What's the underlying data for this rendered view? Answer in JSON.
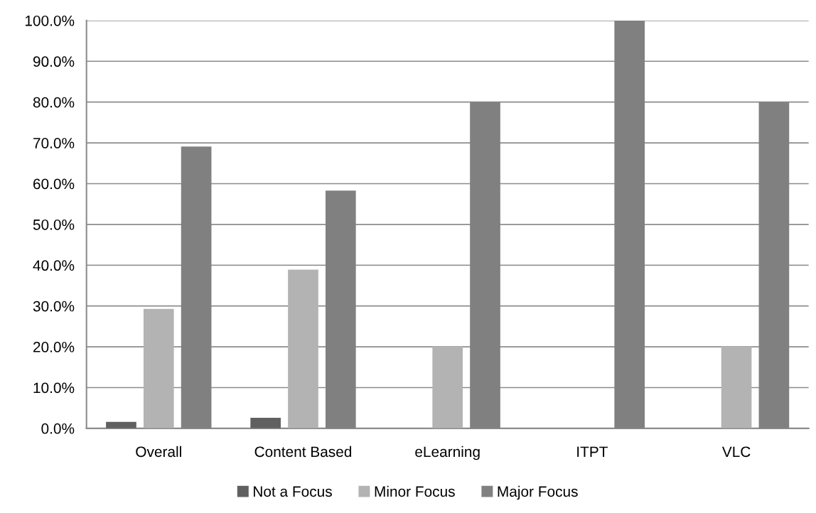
{
  "chart_data": {
    "type": "bar",
    "categories": [
      "Overall",
      "Content Based",
      "eLearning",
      "ITPT",
      "VLC"
    ],
    "series": [
      {
        "name": "Not a Focus",
        "color": "#606060",
        "values": [
          1.6,
          2.6,
          0,
          0,
          0
        ]
      },
      {
        "name": "Minor Focus",
        "color": "#b3b3b3",
        "values": [
          29.3,
          38.9,
          20.0,
          0,
          20.0
        ]
      },
      {
        "name": "Major Focus",
        "color": "#808080",
        "values": [
          69.1,
          58.3,
          80.0,
          100.0,
          80.0
        ]
      }
    ],
    "ylim": [
      0,
      100
    ],
    "yticks": [
      {
        "value": 0,
        "label": "0.0%"
      },
      {
        "value": 10,
        "label": "10.0%"
      },
      {
        "value": 20,
        "label": "20.0%"
      },
      {
        "value": 30,
        "label": "30.0%"
      },
      {
        "value": 40,
        "label": "40.0%"
      },
      {
        "value": 50,
        "label": "50.0%"
      },
      {
        "value": 60,
        "label": "60.0%"
      },
      {
        "value": 70,
        "label": "70.0%"
      },
      {
        "value": 80,
        "label": "80.0%"
      },
      {
        "value": 90,
        "label": "90.0%"
      },
      {
        "value": 100,
        "label": "100.0%"
      }
    ],
    "grid": "y",
    "legend": "bottom"
  }
}
